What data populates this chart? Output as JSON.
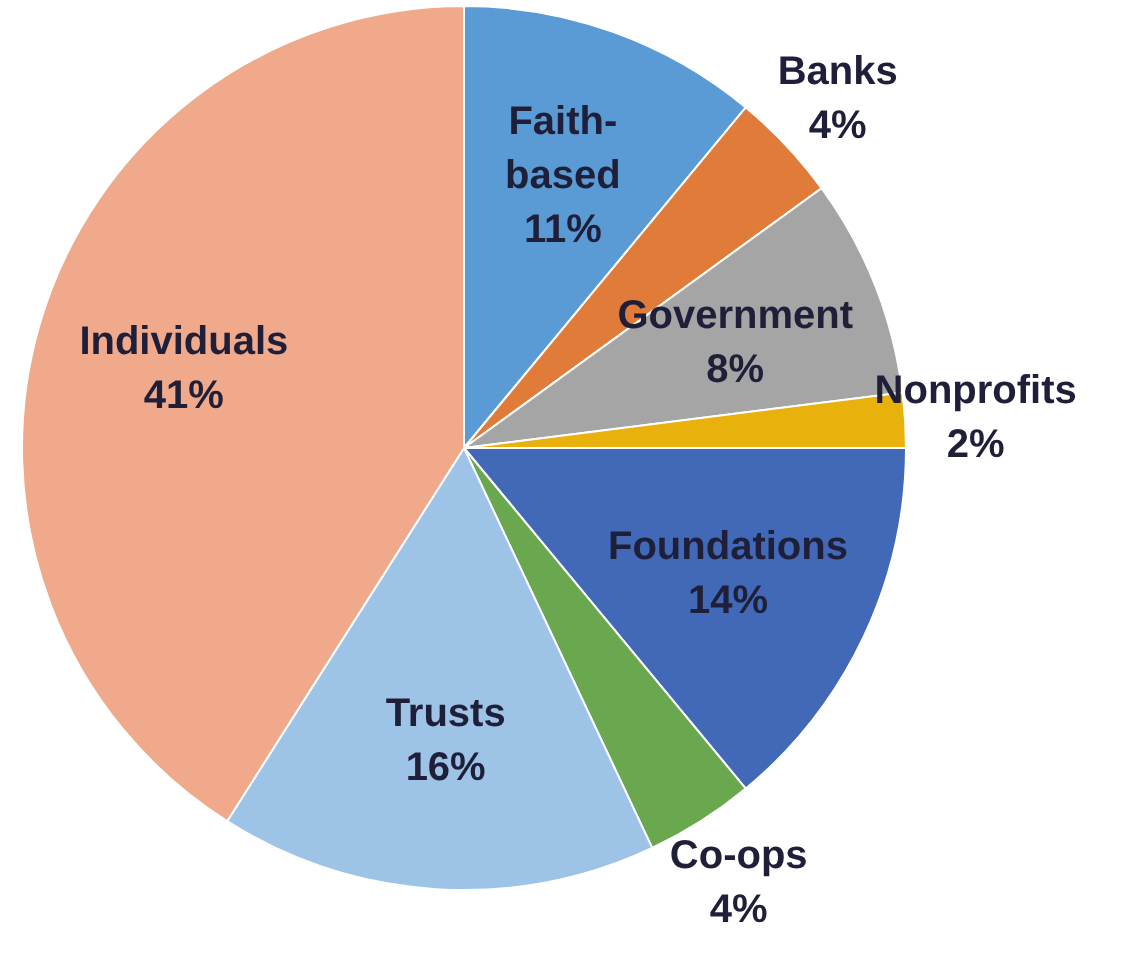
{
  "chart_data": {
    "type": "pie",
    "categories": [
      "Faith-based",
      "Banks",
      "Government",
      "Nonprofits",
      "Foundations",
      "Co-ops",
      "Trusts",
      "Individuals"
    ],
    "values": [
      11,
      4,
      8,
      2,
      14,
      4,
      16,
      41
    ],
    "value_labels": [
      "11%",
      "4%",
      "8%",
      "2%",
      "14%",
      "4%",
      "16%",
      "41%"
    ],
    "colors": [
      "#5b9bd5",
      "#e07b39",
      "#a5a5a5",
      "#e8b10c",
      "#4169b8",
      "#6aa84f",
      "#9dc3e6",
      "#f0a98b"
    ]
  }
}
